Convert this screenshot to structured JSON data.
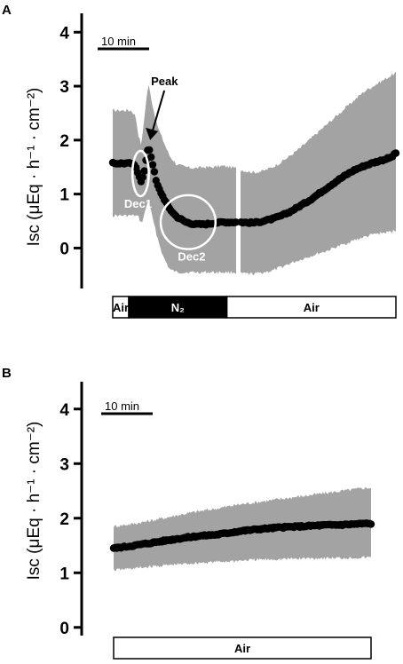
{
  "chart_data": [
    {
      "panel": "A",
      "type": "line",
      "ylabel": "Isc (μEq · h⁻¹ · cm⁻²)",
      "ylim": [
        -0.75,
        4.35
      ],
      "xlim": [
        0,
        62
      ],
      "yticks": [
        0,
        1,
        2,
        3,
        4
      ],
      "scale_bar": "10 min",
      "series": [
        {
          "x": [
            0,
            2,
            4,
            5,
            5.6,
            6.3,
            7,
            7.8,
            8.6,
            9.6,
            11,
            12.5,
            14,
            16,
            18,
            20,
            22,
            24,
            26.5,
            28,
            29.5,
            31,
            33,
            35,
            37,
            39,
            41,
            43,
            45,
            47,
            49,
            51,
            53,
            55,
            57,
            59,
            61,
            62
          ],
          "y": [
            1.57,
            1.57,
            1.57,
            1.52,
            1.38,
            1.22,
            1.45,
            1.9,
            1.62,
            1.2,
            0.95,
            0.72,
            0.58,
            0.48,
            0.44,
            0.44,
            0.46,
            0.48,
            0.48,
            0.48,
            0.47,
            0.47,
            0.5,
            0.54,
            0.6,
            0.68,
            0.78,
            0.88,
            1.0,
            1.12,
            1.24,
            1.35,
            1.45,
            1.52,
            1.58,
            1.63,
            1.68,
            1.76
          ],
          "sd_upper": [
            2.55,
            2.55,
            2.55,
            2.45,
            2.1,
            1.9,
            2.5,
            3.05,
            2.7,
            2.3,
            2.0,
            1.7,
            1.55,
            1.5,
            1.48,
            1.5,
            1.5,
            1.52,
            1.49,
            1.45,
            1.42,
            1.4,
            1.43,
            1.5,
            1.6,
            1.72,
            1.85,
            2.0,
            2.15,
            2.3,
            2.45,
            2.6,
            2.75,
            2.9,
            3.0,
            3.1,
            3.2,
            3.25
          ],
          "sd_lower": [
            0.6,
            0.6,
            0.6,
            0.6,
            0.58,
            0.45,
            0.65,
            0.9,
            0.6,
            0.25,
            -0.15,
            -0.4,
            -0.45,
            -0.45,
            -0.45,
            -0.45,
            -0.45,
            -0.45,
            -0.45,
            -0.47,
            -0.48,
            -0.48,
            -0.45,
            -0.42,
            -0.35,
            -0.28,
            -0.22,
            -0.16,
            -0.1,
            -0.05,
            0.02,
            0.08,
            0.15,
            0.2,
            0.25,
            0.28,
            0.3,
            0.33
          ]
        }
      ],
      "gap_x": 27.5,
      "annotations": [
        {
          "label": "Peak",
          "x": 7.8,
          "y": 1.9
        },
        {
          "label": "Dec1",
          "cx": 6.1,
          "cy": 1.38,
          "rx": 1.8,
          "ry": 0.42
        },
        {
          "label": "Dec2",
          "cx": 16.5,
          "cy": 0.48,
          "rx": 6.0,
          "ry": 0.5
        }
      ],
      "conditions": [
        {
          "label": "Air",
          "x_from": 0,
          "x_to": 3.5,
          "fill": "white"
        },
        {
          "label": "N₂",
          "x_from": 3.5,
          "x_to": 25,
          "fill": "black"
        },
        {
          "label": "Air",
          "x_from": 25,
          "x_to": 62,
          "fill": "white"
        }
      ]
    },
    {
      "panel": "B",
      "type": "line",
      "ylabel": "Isc (μEq · h⁻¹ · cm⁻²)",
      "ylim": [
        -0.15,
        4.5
      ],
      "xlim": [
        0,
        62
      ],
      "yticks": [
        0,
        1,
        2,
        3,
        4
      ],
      "scale_bar": "10 min",
      "series": [
        {
          "x": [
            0,
            5,
            10,
            15,
            20,
            25,
            30,
            35,
            40,
            45,
            50,
            55,
            60,
            62
          ],
          "y": [
            1.45,
            1.5,
            1.56,
            1.62,
            1.67,
            1.7,
            1.76,
            1.8,
            1.83,
            1.85,
            1.87,
            1.88,
            1.9,
            1.9
          ],
          "sd_upper": [
            1.85,
            1.9,
            1.97,
            2.05,
            2.12,
            2.18,
            2.25,
            2.3,
            2.35,
            2.4,
            2.45,
            2.5,
            2.55,
            2.56
          ],
          "sd_lower": [
            1.05,
            1.08,
            1.12,
            1.15,
            1.18,
            1.2,
            1.22,
            1.24,
            1.25,
            1.26,
            1.27,
            1.27,
            1.28,
            1.28
          ]
        }
      ],
      "conditions": [
        {
          "label": "Air",
          "x_from": 0,
          "x_to": 62,
          "fill": "white"
        }
      ]
    }
  ],
  "colors": {
    "band": "#a3a3a3",
    "line": "#000000",
    "annotation": "#ffffff"
  }
}
